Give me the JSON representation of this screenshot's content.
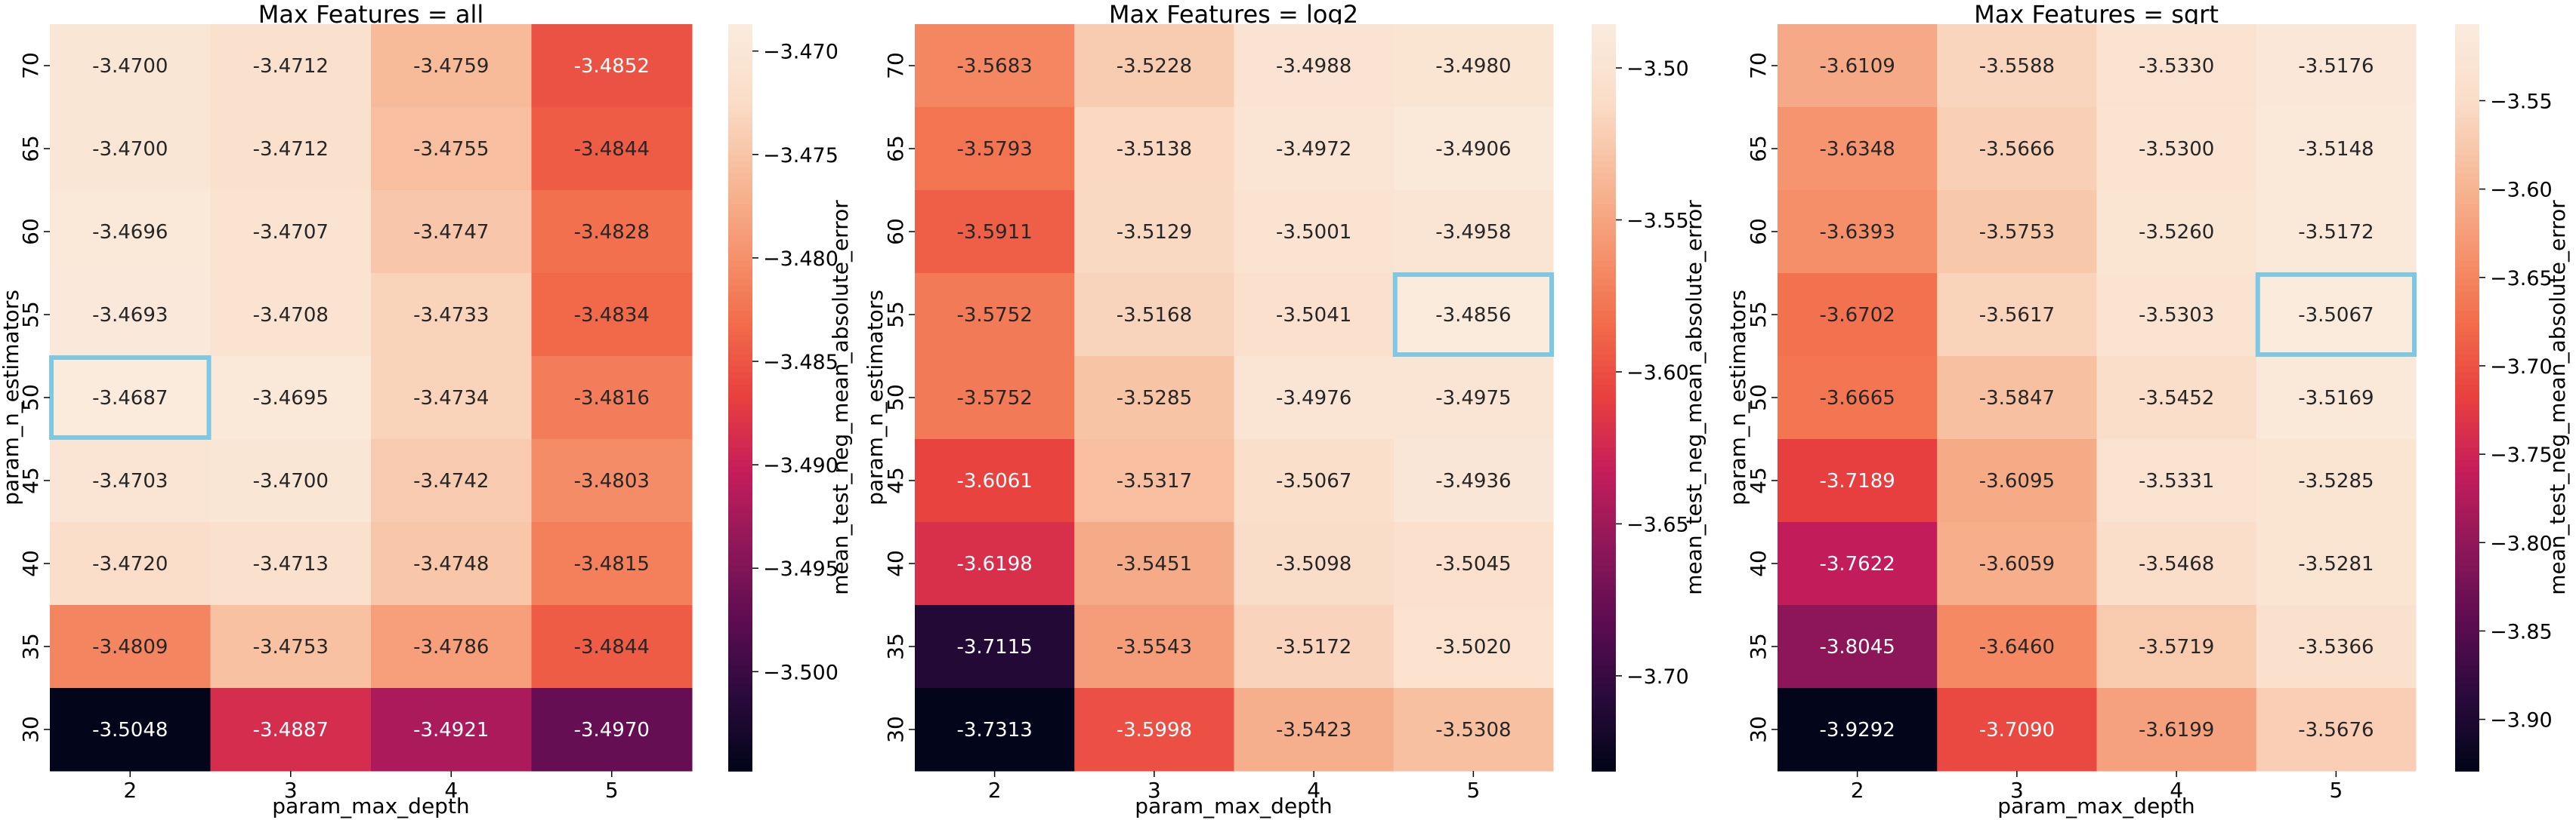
{
  "chart_data": [
    {
      "type": "heatmap",
      "title": "Max Features = all",
      "xlabel": "param_max_depth",
      "ylabel": "param_n_estimators",
      "colorbar_label": "mean_test_neg_mean_absolute_error",
      "x": [
        "2",
        "3",
        "4",
        "5"
      ],
      "y": [
        "70",
        "65",
        "60",
        "55",
        "50",
        "45",
        "40",
        "35",
        "30"
      ],
      "values": [
        [
          -3.47,
          -3.4712,
          -3.4759,
          -3.4852
        ],
        [
          -3.47,
          -3.4712,
          -3.4755,
          -3.4844
        ],
        [
          -3.4696,
          -3.4707,
          -3.4747,
          -3.4828
        ],
        [
          -3.4693,
          -3.4708,
          -3.4733,
          -3.4834
        ],
        [
          -3.4687,
          -3.4695,
          -3.4734,
          -3.4816
        ],
        [
          -3.4703,
          -3.47,
          -3.4742,
          -3.4803
        ],
        [
          -3.472,
          -3.4713,
          -3.4748,
          -3.4815
        ],
        [
          -3.4809,
          -3.4753,
          -3.4786,
          -3.4844
        ],
        [
          -3.5048,
          -3.4887,
          -3.4921,
          -3.497
        ]
      ],
      "labels": [
        [
          "-3.4700",
          "-3.4712",
          "-3.4759",
          "-3.4852"
        ],
        [
          "-3.4700",
          "-3.4712",
          "-3.4755",
          "-3.4844"
        ],
        [
          "-3.4696",
          "-3.4707",
          "-3.4747",
          "-3.4828"
        ],
        [
          "-3.4693",
          "-3.4708",
          "-3.4733",
          "-3.4834"
        ],
        [
          "-3.4687",
          "-3.4695",
          "-3.4734",
          "-3.4816"
        ],
        [
          "-3.4703",
          "-3.4700",
          "-3.4742",
          "-3.4803"
        ],
        [
          "-3.4720",
          "-3.4713",
          "-3.4748",
          "-3.4815"
        ],
        [
          "-3.4809",
          "-3.4753",
          "-3.4786",
          "-3.4844"
        ],
        [
          "-3.5048",
          "-3.4887",
          "-3.4921",
          "-3.4970"
        ]
      ],
      "highlight": {
        "x": "2",
        "y": "50"
      },
      "color_range": [
        -3.5048,
        -3.4687
      ],
      "colorbar_ticks": [
        -3.47,
        -3.475,
        -3.48,
        -3.485,
        -3.49,
        -3.495,
        -3.5
      ],
      "colorbar_tick_labels": [
        "−3.470",
        "−3.475",
        "−3.480",
        "−3.485",
        "−3.490",
        "−3.495",
        "−3.500"
      ]
    },
    {
      "type": "heatmap",
      "title": "Max Features = log2",
      "xlabel": "param_max_depth",
      "ylabel": "param_n_estimators",
      "colorbar_label": "mean_test_neg_mean_absolute_error",
      "x": [
        "2",
        "3",
        "4",
        "5"
      ],
      "y": [
        "70",
        "65",
        "60",
        "55",
        "50",
        "45",
        "40",
        "35",
        "30"
      ],
      "values": [
        [
          -3.5683,
          -3.5228,
          -3.4988,
          -3.498
        ],
        [
          -3.5793,
          -3.5138,
          -3.4972,
          -3.4906
        ],
        [
          -3.5911,
          -3.5129,
          -3.5001,
          -3.4958
        ],
        [
          -3.5752,
          -3.5168,
          -3.5041,
          -3.4856
        ],
        [
          -3.5752,
          -3.5285,
          -3.4976,
          -3.4975
        ],
        [
          -3.6061,
          -3.5317,
          -3.5067,
          -3.4936
        ],
        [
          -3.6198,
          -3.5451,
          -3.5098,
          -3.5045
        ],
        [
          -3.7115,
          -3.5543,
          -3.5172,
          -3.502
        ],
        [
          -3.7313,
          -3.5998,
          -3.5423,
          -3.5308
        ]
      ],
      "labels": [
        [
          "-3.5683",
          "-3.5228",
          "-3.4988",
          "-3.4980"
        ],
        [
          "-3.5793",
          "-3.5138",
          "-3.4972",
          "-3.4906"
        ],
        [
          "-3.5911",
          "-3.5129",
          "-3.5001",
          "-3.4958"
        ],
        [
          "-3.5752",
          "-3.5168",
          "-3.5041",
          "-3.4856"
        ],
        [
          "-3.5752",
          "-3.5285",
          "-3.4976",
          "-3.4975"
        ],
        [
          "-3.6061",
          "-3.5317",
          "-3.5067",
          "-3.4936"
        ],
        [
          "-3.6198",
          "-3.5451",
          "-3.5098",
          "-3.5045"
        ],
        [
          "-3.7115",
          "-3.5543",
          "-3.5172",
          "-3.5020"
        ],
        [
          "-3.7313",
          "-3.5998",
          "-3.5423",
          "-3.5308"
        ]
      ],
      "highlight": {
        "x": "5",
        "y": "55"
      },
      "color_range": [
        -3.7313,
        -3.4856
      ],
      "colorbar_ticks": [
        -3.5,
        -3.55,
        -3.6,
        -3.65,
        -3.7
      ],
      "colorbar_tick_labels": [
        "−3.50",
        "−3.55",
        "−3.60",
        "−3.65",
        "−3.70"
      ]
    },
    {
      "type": "heatmap",
      "title": "Max Features = sqrt",
      "xlabel": "param_max_depth",
      "ylabel": "param_n_estimators",
      "colorbar_label": "mean_test_neg_mean_absolute_error",
      "x": [
        "2",
        "3",
        "4",
        "5"
      ],
      "y": [
        "70",
        "65",
        "60",
        "55",
        "50",
        "45",
        "40",
        "35",
        "30"
      ],
      "values": [
        [
          -3.6109,
          -3.5588,
          -3.533,
          -3.5176
        ],
        [
          -3.6348,
          -3.5666,
          -3.53,
          -3.5148
        ],
        [
          -3.6393,
          -3.5753,
          -3.526,
          -3.5172
        ],
        [
          -3.6702,
          -3.5617,
          -3.5303,
          -3.5067
        ],
        [
          -3.6665,
          -3.5847,
          -3.5452,
          -3.5169
        ],
        [
          -3.7189,
          -3.6095,
          -3.5331,
          -3.5285
        ],
        [
          -3.7622,
          -3.6059,
          -3.5468,
          -3.5281
        ],
        [
          -3.8045,
          -3.646,
          -3.5719,
          -3.5366
        ],
        [
          -3.9292,
          -3.709,
          -3.6199,
          -3.5676
        ]
      ],
      "labels": [
        [
          "-3.6109",
          "-3.5588",
          "-3.5330",
          "-3.5176"
        ],
        [
          "-3.6348",
          "-3.5666",
          "-3.5300",
          "-3.5148"
        ],
        [
          "-3.6393",
          "-3.5753",
          "-3.5260",
          "-3.5172"
        ],
        [
          "-3.6702",
          "-3.5617",
          "-3.5303",
          "-3.5067"
        ],
        [
          "-3.6665",
          "-3.5847",
          "-3.5452",
          "-3.5169"
        ],
        [
          "-3.7189",
          "-3.6095",
          "-3.5331",
          "-3.5285"
        ],
        [
          "-3.7622",
          "-3.6059",
          "-3.5468",
          "-3.5281"
        ],
        [
          "-3.8045",
          "-3.6460",
          "-3.5719",
          "-3.5366"
        ],
        [
          "-3.9292",
          "-3.7090",
          "-3.6199",
          "-3.5676"
        ]
      ],
      "highlight": {
        "x": "5",
        "y": "55"
      },
      "color_range": [
        -3.9292,
        -3.5067
      ],
      "colorbar_ticks": [
        -3.55,
        -3.6,
        -3.65,
        -3.7,
        -3.75,
        -3.8,
        -3.85,
        -3.9
      ],
      "colorbar_tick_labels": [
        "−3.55",
        "−3.60",
        "−3.65",
        "−3.70",
        "−3.75",
        "−3.80",
        "−3.85",
        "−3.90"
      ]
    }
  ],
  "colors": {
    "highlight_border": "#7ec8e3",
    "colormap": [
      "#03051a",
      "#2b0a3d",
      "#5e0c52",
      "#8f1759",
      "#c51d5a",
      "#e83f3f",
      "#f26c4a",
      "#f5956f",
      "#f7bb9a",
      "#faddc8",
      "#faebdd"
    ]
  }
}
